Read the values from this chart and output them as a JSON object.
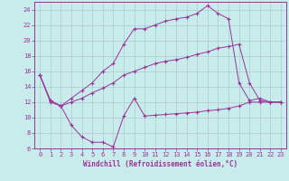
{
  "xlabel": "Windchill (Refroidissement éolien,°C)",
  "xlim": [
    -0.5,
    23.5
  ],
  "ylim": [
    6,
    25
  ],
  "xticks": [
    0,
    1,
    2,
    3,
    4,
    5,
    6,
    7,
    8,
    9,
    10,
    11,
    12,
    13,
    14,
    15,
    16,
    17,
    18,
    19,
    20,
    21,
    22,
    23
  ],
  "yticks": [
    6,
    8,
    10,
    12,
    14,
    16,
    18,
    20,
    22,
    24
  ],
  "bg_color": "#c8ecec",
  "line_color": "#993399",
  "grid_color": "#aacccc",
  "lines": [
    {
      "x": [
        0,
        1,
        2,
        3,
        4,
        5,
        6,
        7,
        8,
        9,
        10,
        11,
        12,
        13,
        14,
        15,
        16,
        17,
        18,
        19,
        20,
        21,
        22,
        23
      ],
      "y": [
        15.5,
        12.0,
        11.5,
        9.0,
        7.5,
        6.8,
        6.8,
        6.2,
        10.2,
        12.5,
        10.2,
        10.3,
        10.4,
        10.5,
        10.6,
        10.7,
        10.9,
        11.0,
        11.2,
        11.5,
        12.0,
        12.0,
        12.0,
        12.0
      ]
    },
    {
      "x": [
        0,
        1,
        2,
        3,
        4,
        5,
        6,
        7,
        8,
        9,
        10,
        11,
        12,
        13,
        14,
        15,
        16,
        17,
        18,
        19,
        20,
        21,
        22,
        23
      ],
      "y": [
        15.5,
        12.2,
        11.5,
        12.0,
        12.5,
        13.2,
        13.8,
        14.5,
        15.5,
        16.0,
        16.5,
        17.0,
        17.3,
        17.5,
        17.8,
        18.2,
        18.5,
        19.0,
        19.2,
        19.5,
        14.5,
        12.2,
        12.0,
        12.0
      ]
    },
    {
      "x": [
        0,
        1,
        2,
        3,
        4,
        5,
        6,
        7,
        8,
        9,
        10,
        11,
        12,
        13,
        14,
        15,
        16,
        17,
        18,
        19,
        20,
        21,
        22,
        23
      ],
      "y": [
        15.5,
        12.2,
        11.5,
        12.5,
        13.5,
        14.5,
        16.0,
        17.0,
        19.5,
        21.5,
        21.5,
        22.0,
        22.5,
        22.8,
        23.0,
        23.5,
        24.5,
        23.5,
        22.8,
        14.5,
        12.2,
        12.5,
        12.0,
        12.0
      ]
    }
  ]
}
